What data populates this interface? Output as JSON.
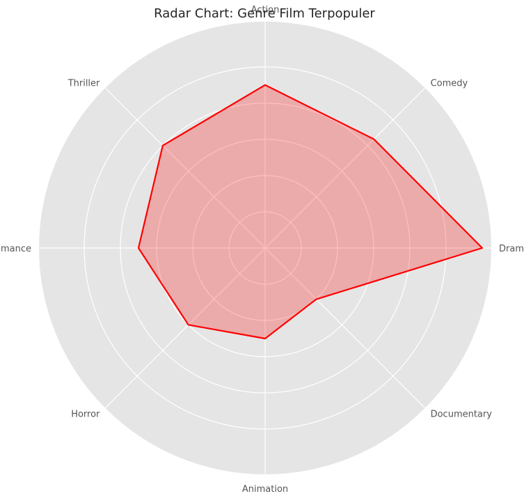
{
  "chart_data": {
    "type": "radar",
    "title": "Radar Chart: Genre Film Terpopuler",
    "categories": [
      "Drama",
      "Comedy",
      "Action",
      "Thriller",
      "Romance",
      "Horror",
      "Animation",
      "Documentary"
    ],
    "series": [
      {
        "values": [
          120,
          85,
          90,
          80,
          70,
          60,
          50,
          40
        ],
        "color": "#ff0000"
      }
    ],
    "rlim": [
      0,
      125
    ],
    "rgrid_values": [
      20,
      40,
      60,
      80,
      100
    ],
    "tick_labels_shown": false,
    "grid": true,
    "colors": {
      "plot_background": "#e5e5e5",
      "grid": "#ffffff",
      "line": "#ff0000",
      "fill": "#ff0000",
      "fill_opacity": 0.25
    }
  }
}
